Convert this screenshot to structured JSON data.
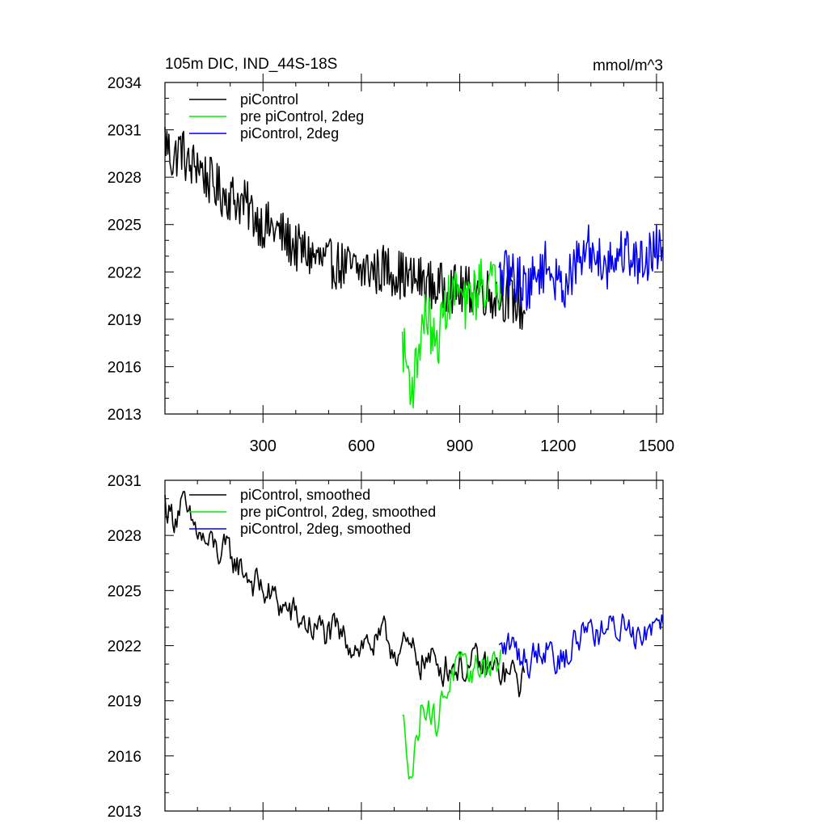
{
  "figure": {
    "title_left": "105m DIC, IND_44S-18S",
    "title_right": "mmol/m^3"
  },
  "chart_data": [
    {
      "type": "line",
      "title": "105m DIC, IND_44S-18S",
      "units": "mmol/m^3",
      "xlim": [
        1,
        1520
      ],
      "ylim": [
        2013,
        2034
      ],
      "xticks": [
        300,
        600,
        900,
        1200,
        1500
      ],
      "yticks": [
        2013,
        2016,
        2019,
        2022,
        2025,
        2028,
        2031,
        2034
      ],
      "legend": "top-left",
      "series": [
        {
          "name": "piControl",
          "color": "#000000",
          "x": [
            1,
            25,
            50,
            75,
            100,
            125,
            150,
            175,
            200,
            225,
            250,
            275,
            300,
            325,
            350,
            375,
            400,
            425,
            450,
            475,
            500,
            525,
            550,
            575,
            600,
            625,
            650,
            675,
            700,
            725,
            750,
            775,
            800,
            825,
            850,
            875,
            900,
            925,
            950,
            975,
            1000,
            1025,
            1050,
            1075,
            1100
          ],
          "y": [
            2030.5,
            2029.0,
            2030.0,
            2028.5,
            2029.0,
            2028.0,
            2027.5,
            2027.0,
            2026.8,
            2026.5,
            2026.2,
            2025.5,
            2025.0,
            2024.8,
            2024.5,
            2024.0,
            2023.5,
            2023.3,
            2023.0,
            2022.7,
            2022.5,
            2022.5,
            2022.3,
            2022.2,
            2022.0,
            2022.2,
            2022.0,
            2022.3,
            2022.0,
            2021.8,
            2021.5,
            2021.5,
            2021.3,
            2021.0,
            2021.0,
            2021.0,
            2020.8,
            2020.8,
            2021.0,
            2020.8,
            2020.5,
            2020.5,
            2020.3,
            2020.0,
            2019.5
          ]
        },
        {
          "name": "pre piControl, 2deg",
          "color": "#00ee00",
          "x": [
            725,
            740,
            755,
            770,
            785,
            800,
            815,
            830,
            845,
            860,
            875,
            890,
            905,
            920,
            935,
            950,
            965,
            980,
            995,
            1010,
            1025
          ],
          "y": [
            2017.5,
            2016.0,
            2014.5,
            2016.5,
            2018.5,
            2019.5,
            2018.0,
            2017.0,
            2019.0,
            2020.0,
            2020.5,
            2021.0,
            2020.5,
            2019.5,
            2021.0,
            2020.5,
            2021.5,
            2021.0,
            2021.5,
            2021.0,
            2021.2
          ]
        },
        {
          "name": "piControl, 2deg",
          "color": "#0000ee",
          "x": [
            1020,
            1050,
            1080,
            1110,
            1140,
            1170,
            1200,
            1230,
            1260,
            1290,
            1320,
            1350,
            1380,
            1410,
            1440,
            1470,
            1500,
            1520
          ],
          "y": [
            2021.5,
            2022.0,
            2021.5,
            2021.0,
            2022.0,
            2022.5,
            2021.0,
            2021.5,
            2022.5,
            2023.5,
            2023.0,
            2022.5,
            2023.0,
            2023.5,
            2022.5,
            2023.0,
            2023.5,
            2024.0
          ]
        }
      ]
    },
    {
      "type": "line",
      "title": "",
      "xlim": [
        1,
        1520
      ],
      "ylim": [
        2013,
        2031
      ],
      "xticks": [
        300,
        600,
        900,
        1200,
        1500
      ],
      "yticks": [
        2013,
        2016,
        2019,
        2022,
        2025,
        2028,
        2031
      ],
      "legend": "top-left",
      "series": [
        {
          "name": "piControl, smoothed",
          "color": "#000000",
          "x": [
            1,
            25,
            50,
            75,
            100,
            125,
            150,
            175,
            200,
            225,
            250,
            275,
            300,
            325,
            350,
            375,
            400,
            425,
            450,
            475,
            500,
            525,
            550,
            575,
            600,
            625,
            650,
            675,
            700,
            725,
            750,
            775,
            800,
            825,
            850,
            875,
            900,
            925,
            950,
            975,
            1000,
            1025,
            1050,
            1075,
            1100
          ],
          "y": [
            2029.8,
            2029.0,
            2029.8,
            2028.5,
            2028.2,
            2027.5,
            2027.3,
            2027.0,
            2026.8,
            2026.4,
            2026.0,
            2025.4,
            2025.0,
            2024.6,
            2024.3,
            2023.9,
            2023.5,
            2023.3,
            2023.0,
            2022.8,
            2022.6,
            2022.5,
            2022.3,
            2022.3,
            2022.1,
            2022.2,
            2022.0,
            2022.3,
            2022.0,
            2021.8,
            2021.5,
            2021.4,
            2021.2,
            2021.0,
            2021.0,
            2021.0,
            2020.9,
            2020.8,
            2020.9,
            2020.7,
            2020.6,
            2020.5,
            2020.4,
            2020.1,
            2019.8
          ]
        },
        {
          "name": "pre piControl, 2deg, smoothed",
          "color": "#00ee00",
          "x": [
            725,
            740,
            755,
            770,
            785,
            800,
            815,
            830,
            845,
            860,
            875,
            890,
            905,
            920,
            935,
            950,
            965,
            980,
            995,
            1010,
            1025
          ],
          "y": [
            2017.8,
            2016.5,
            2015.2,
            2017.0,
            2018.8,
            2019.3,
            2018.3,
            2017.6,
            2019.0,
            2019.8,
            2020.4,
            2020.8,
            2020.5,
            2019.9,
            2020.8,
            2020.6,
            2021.2,
            2020.9,
            2021.3,
            2021.0,
            2021.1
          ]
        },
        {
          "name": "piControl, 2deg, smoothed",
          "color": "#0000ee",
          "x": [
            1020,
            1050,
            1080,
            1110,
            1140,
            1170,
            1200,
            1230,
            1260,
            1290,
            1320,
            1350,
            1380,
            1410,
            1440,
            1470,
            1500,
            1520
          ],
          "y": [
            2021.6,
            2022.0,
            2021.6,
            2021.2,
            2021.9,
            2022.3,
            2021.2,
            2021.5,
            2022.4,
            2023.2,
            2022.9,
            2022.6,
            2023.0,
            2023.4,
            2022.7,
            2023.0,
            2023.6,
            2024.0
          ]
        }
      ]
    }
  ]
}
